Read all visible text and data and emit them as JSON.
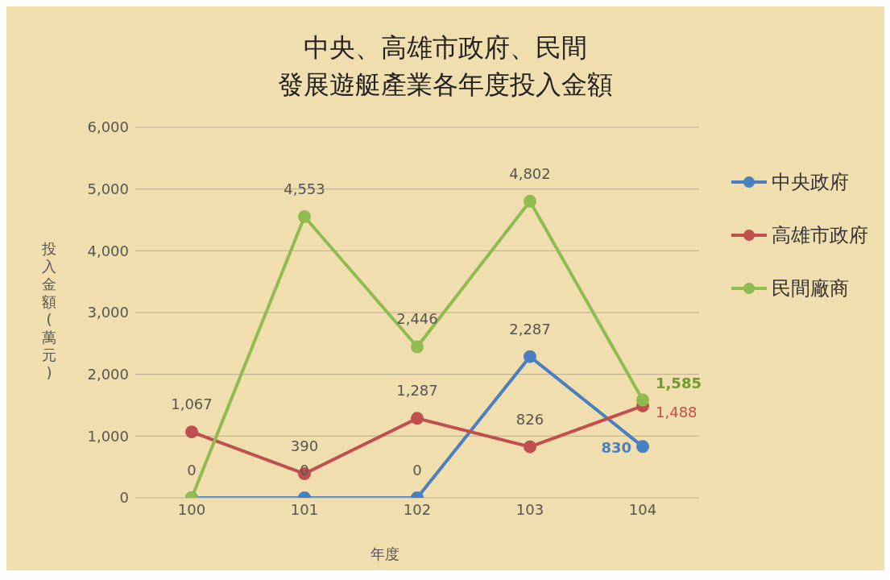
{
  "chart_data": {
    "type": "line",
    "title": "中央、高雄市政府、民間",
    "subtitle": "發展遊艇產業各年度投入金額",
    "xlabel": "年度",
    "ylabel": "投入金額(萬元)",
    "categories": [
      "100",
      "101",
      "102",
      "103",
      "104"
    ],
    "series": [
      {
        "name": "中央政府",
        "color": "#4a7fc1",
        "values": [
          0,
          0,
          0,
          2287,
          830
        ],
        "value_labels": [
          "0",
          "0",
          "0",
          "2,287",
          "830"
        ]
      },
      {
        "name": "高雄市政府",
        "color": "#c0504d",
        "values": [
          1067,
          390,
          1287,
          826,
          1488
        ],
        "value_labels": [
          "1,067",
          "390",
          "1,287",
          "826",
          "1,488"
        ]
      },
      {
        "name": "民間廠商",
        "color": "#8fbc4f",
        "values": [
          0,
          4553,
          2446,
          4802,
          1585
        ],
        "value_labels": [
          null,
          "4,553",
          "2,446",
          "4,802",
          "1,585"
        ]
      }
    ],
    "ylim": [
      0,
      6000
    ],
    "yticks": [
      0,
      {
        "value": 1000,
        "label": "1,000"
      },
      {
        "value": 2000,
        "label": "2,000"
      },
      {
        "value": 3000,
        "label": "3,000"
      },
      {
        "value": 4000,
        "label": "4,000"
      },
      {
        "value": 5000,
        "label": "5,000"
      },
      {
        "value": 6000,
        "label": "6,000"
      }
    ],
    "grid": "y",
    "legend": "right",
    "marker": "circle"
  }
}
